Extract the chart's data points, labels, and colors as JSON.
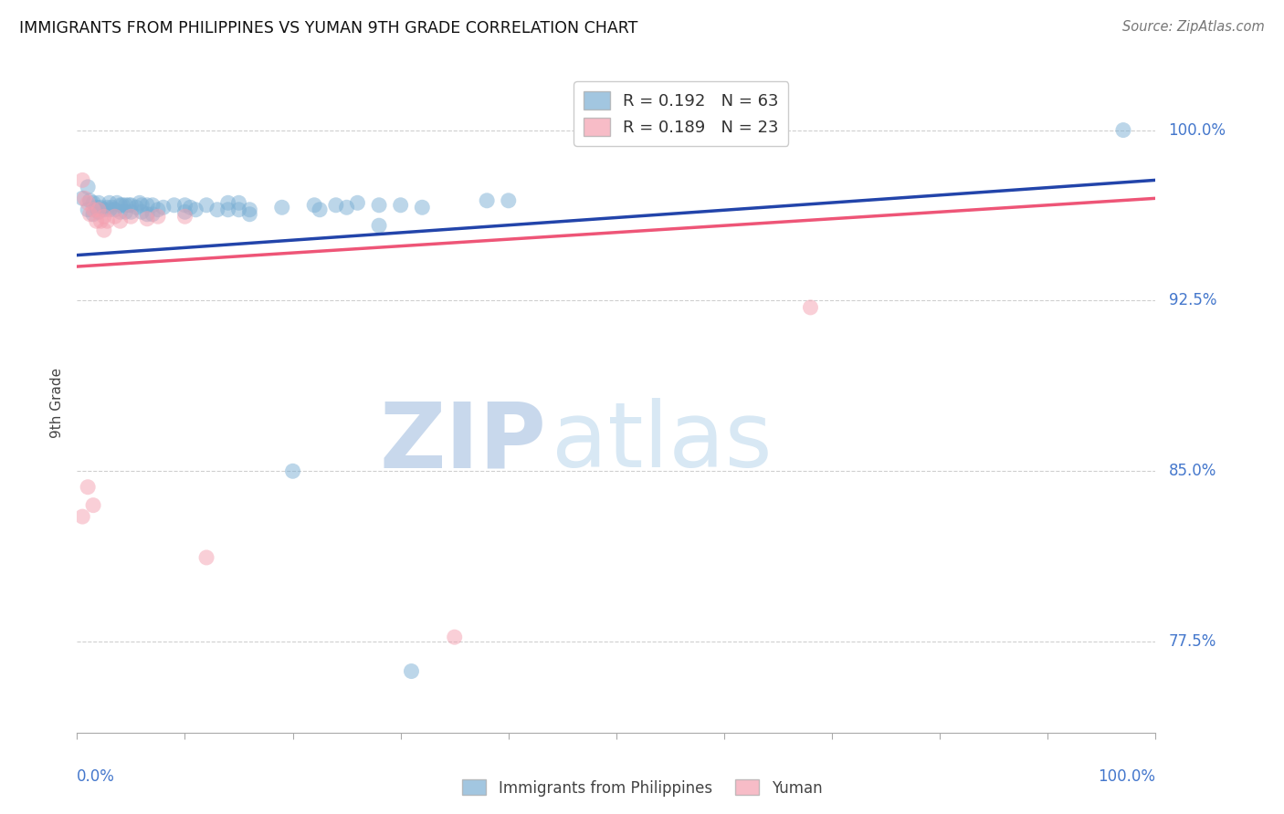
{
  "title": "IMMIGRANTS FROM PHILIPPINES VS YUMAN 9TH GRADE CORRELATION CHART",
  "source": "Source: ZipAtlas.com",
  "ylabel": "9th Grade",
  "yaxis_labels": [
    "100.0%",
    "92.5%",
    "85.0%",
    "77.5%"
  ],
  "yaxis_values": [
    1.0,
    0.925,
    0.85,
    0.775
  ],
  "legend_blue_r": "R = 0.192",
  "legend_blue_n": "N = 63",
  "legend_pink_r": "R = 0.189",
  "legend_pink_n": "N = 23",
  "blue_color": "#7BAFD4",
  "pink_color": "#F4A0B0",
  "blue_line_color": "#2244AA",
  "pink_line_color": "#EE5577",
  "blue_scatter_x": [
    0.005,
    0.01,
    0.01,
    0.012,
    0.015,
    0.015,
    0.018,
    0.02,
    0.02,
    0.022,
    0.025,
    0.028,
    0.03,
    0.03,
    0.032,
    0.035,
    0.037,
    0.04,
    0.04,
    0.042,
    0.045,
    0.045,
    0.048,
    0.05,
    0.05,
    0.055,
    0.058,
    0.06,
    0.06,
    0.065,
    0.065,
    0.07,
    0.07,
    0.075,
    0.08,
    0.09,
    0.1,
    0.1,
    0.105,
    0.11,
    0.12,
    0.13,
    0.14,
    0.14,
    0.15,
    0.15,
    0.16,
    0.16,
    0.19,
    0.22,
    0.225,
    0.24,
    0.25,
    0.26,
    0.28,
    0.3,
    0.32,
    0.38,
    0.4,
    0.2,
    0.28,
    0.31,
    0.97
  ],
  "blue_scatter_y": [
    0.97,
    0.975,
    0.965,
    0.969,
    0.968,
    0.963,
    0.966,
    0.968,
    0.964,
    0.966,
    0.965,
    0.966,
    0.965,
    0.968,
    0.966,
    0.965,
    0.968,
    0.967,
    0.964,
    0.967,
    0.967,
    0.964,
    0.967,
    0.967,
    0.964,
    0.966,
    0.968,
    0.967,
    0.964,
    0.967,
    0.963,
    0.967,
    0.963,
    0.965,
    0.966,
    0.967,
    0.967,
    0.964,
    0.966,
    0.965,
    0.967,
    0.965,
    0.968,
    0.965,
    0.968,
    0.965,
    0.965,
    0.963,
    0.966,
    0.967,
    0.965,
    0.967,
    0.966,
    0.968,
    0.967,
    0.967,
    0.966,
    0.969,
    0.969,
    0.85,
    0.958,
    0.762,
    1.0
  ],
  "pink_scatter_x": [
    0.005,
    0.007,
    0.01,
    0.012,
    0.015,
    0.018,
    0.02,
    0.022,
    0.025,
    0.025,
    0.028,
    0.035,
    0.04,
    0.05,
    0.065,
    0.075,
    0.1,
    0.005,
    0.01,
    0.015,
    0.35,
    0.68,
    0.12
  ],
  "pink_scatter_y": [
    0.978,
    0.97,
    0.968,
    0.963,
    0.965,
    0.96,
    0.965,
    0.96,
    0.962,
    0.956,
    0.96,
    0.962,
    0.96,
    0.962,
    0.961,
    0.962,
    0.962,
    0.83,
    0.843,
    0.835,
    0.777,
    0.922,
    0.812
  ],
  "xlim": [
    0.0,
    1.0
  ],
  "ylim": [
    0.735,
    1.025
  ],
  "blue_trend_x": [
    0.0,
    1.0
  ],
  "blue_trend_y": [
    0.945,
    0.978
  ],
  "pink_trend_x": [
    0.0,
    1.0
  ],
  "pink_trend_y": [
    0.94,
    0.97
  ],
  "grid_color": "#BBBBBB",
  "watermark_left": "ZIP",
  "watermark_right": "atlas"
}
